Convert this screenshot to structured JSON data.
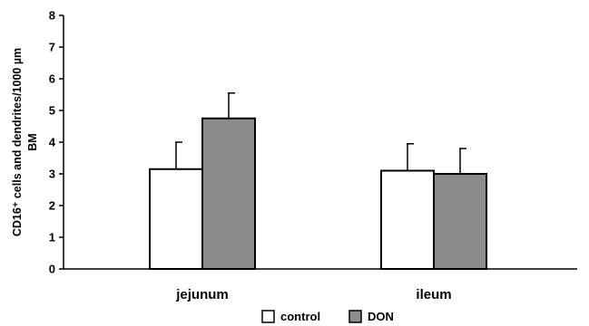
{
  "chart_data": {
    "type": "bar",
    "categories": [
      "jejunum",
      "ileum"
    ],
    "series": [
      {
        "name": "control",
        "values": [
          3.15,
          3.1
        ],
        "errors": [
          0.85,
          0.85
        ],
        "color": "#ffffff"
      },
      {
        "name": "DON",
        "values": [
          4.75,
          3.0
        ],
        "errors": [
          0.8,
          0.8
        ],
        "color": "#8c8c8c"
      }
    ],
    "ylabel_line1": "CD16⁺ cells and dendrites/1000 µm",
    "ylabel_line2": "BM",
    "xlabel": "",
    "ylim": [
      0,
      8
    ],
    "yticks": [
      "0",
      "1",
      "2",
      "3",
      "4",
      "5",
      "6",
      "7",
      "8"
    ],
    "grid": false,
    "legend_position": "bottom-center"
  }
}
